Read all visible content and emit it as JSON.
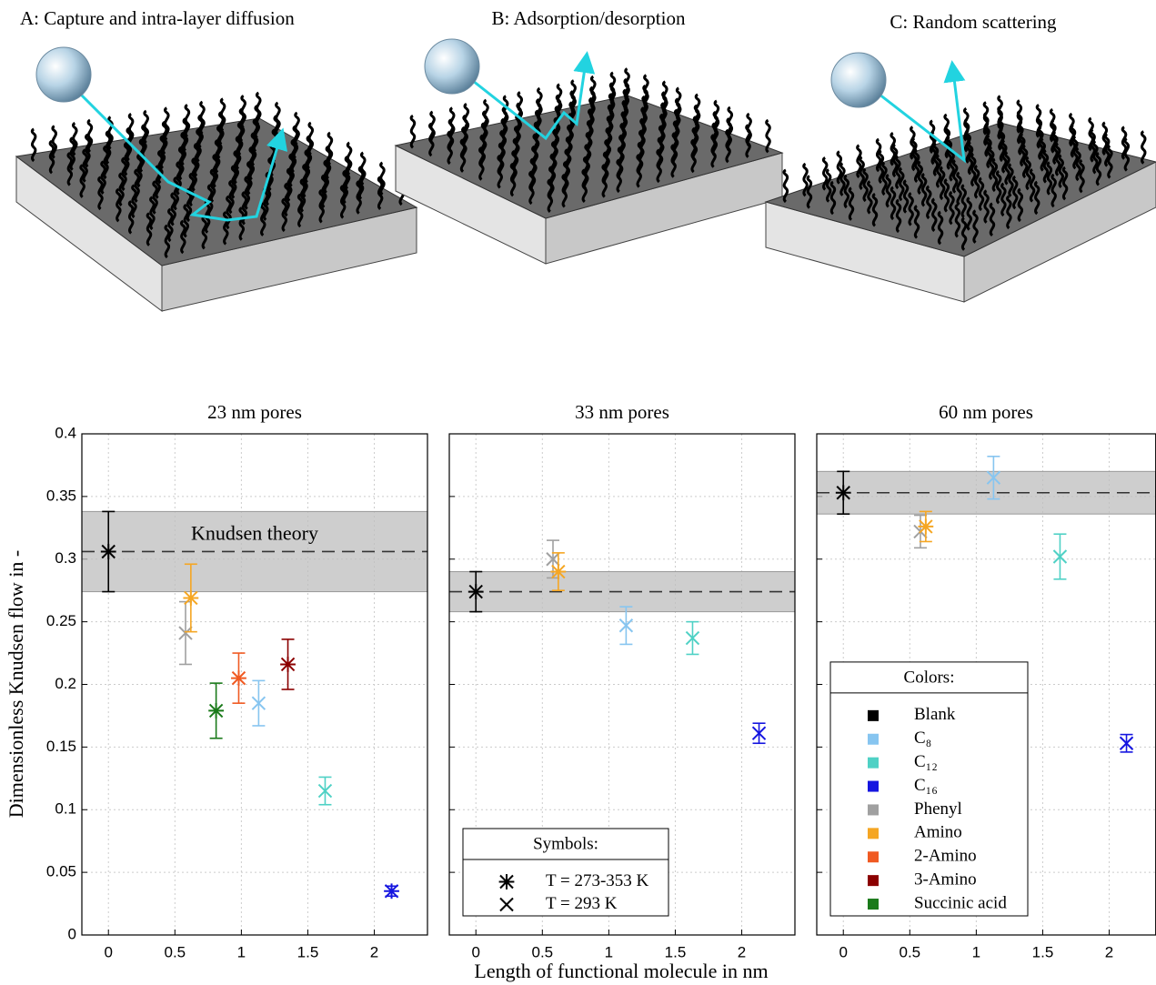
{
  "illustrations": [
    {
      "title": "A: Capture and intra-layer diffusion"
    },
    {
      "title": "B: Adsorption/desorption"
    },
    {
      "title": "C: Random scattering"
    }
  ],
  "xlabel": "Length of functional molecule in nm",
  "ylabel": "Dimensionless Knudsen flow in -",
  "chart_data": [
    {
      "type": "scatter",
      "title": "23 nm pores",
      "xlim": [
        -0.2,
        2.4
      ],
      "ylim": [
        0,
        0.4
      ],
      "xticks": [
        0,
        0.5,
        1,
        1.5,
        2
      ],
      "yticks": [
        0,
        0.05,
        0.1,
        0.15,
        0.2,
        0.25,
        0.3,
        0.35,
        0.4
      ],
      "ytick_labels": true,
      "grid": true,
      "theory": {
        "center": 0.306,
        "lower": 0.274,
        "upper": 0.338,
        "label": "Knudsen theory"
      },
      "series": [
        {
          "color": "#000000",
          "marker": "star",
          "x": [
            0
          ],
          "values": [
            0.306
          ],
          "errors": [
            0.032
          ]
        },
        {
          "color": "#a0a0a0",
          "marker": "x",
          "x": [
            0.58
          ],
          "values": [
            0.241
          ],
          "errors": [
            0.025
          ]
        },
        {
          "color": "#f5a623",
          "marker": "star",
          "x": [
            0.62
          ],
          "values": [
            0.269
          ],
          "errors": [
            0.027
          ]
        },
        {
          "color": "#1a7a1a",
          "marker": "star",
          "x": [
            0.81
          ],
          "values": [
            0.179
          ],
          "errors": [
            0.022
          ]
        },
        {
          "color": "#f05a22",
          "marker": "star",
          "x": [
            0.98
          ],
          "values": [
            0.205
          ],
          "errors": [
            0.02
          ]
        },
        {
          "color": "#87c5f0",
          "marker": "x",
          "x": [
            1.13
          ],
          "values": [
            0.185
          ],
          "errors": [
            0.018
          ]
        },
        {
          "color": "#8b0000",
          "marker": "star",
          "x": [
            1.35
          ],
          "values": [
            0.216
          ],
          "errors": [
            0.02
          ]
        },
        {
          "color": "#4fd1c5",
          "marker": "x",
          "x": [
            1.63
          ],
          "values": [
            0.115
          ],
          "errors": [
            0.011
          ]
        },
        {
          "color": "#1515e0",
          "marker": "star",
          "x": [
            2.13
          ],
          "values": [
            0.035
          ],
          "errors": [
            0.004
          ]
        }
      ]
    },
    {
      "type": "scatter",
      "title": "33 nm pores",
      "xlim": [
        -0.2,
        2.4
      ],
      "ylim": [
        0,
        0.4
      ],
      "xticks": [
        0,
        0.5,
        1,
        1.5,
        2
      ],
      "yticks": [
        0,
        0.05,
        0.1,
        0.15,
        0.2,
        0.25,
        0.3,
        0.35,
        0.4
      ],
      "ytick_labels": false,
      "grid": true,
      "theory": {
        "center": 0.274,
        "lower": 0.258,
        "upper": 0.29
      },
      "series": [
        {
          "color": "#000000",
          "marker": "star",
          "x": [
            0
          ],
          "values": [
            0.274
          ],
          "errors": [
            0.016
          ]
        },
        {
          "color": "#a0a0a0",
          "marker": "x",
          "x": [
            0.58
          ],
          "values": [
            0.3
          ],
          "errors": [
            0.015
          ]
        },
        {
          "color": "#f5a623",
          "marker": "star",
          "x": [
            0.62
          ],
          "values": [
            0.29
          ],
          "errors": [
            0.015
          ]
        },
        {
          "color": "#87c5f0",
          "marker": "x",
          "x": [
            1.13
          ],
          "values": [
            0.247
          ],
          "errors": [
            0.015
          ]
        },
        {
          "color": "#4fd1c5",
          "marker": "x",
          "x": [
            1.63
          ],
          "values": [
            0.237
          ],
          "errors": [
            0.013
          ]
        },
        {
          "color": "#1515e0",
          "marker": "x",
          "x": [
            2.13
          ],
          "values": [
            0.161
          ],
          "errors": [
            0.008
          ]
        }
      ],
      "legend": {
        "title": "Symbols:",
        "position": "lower left",
        "entries": [
          {
            "marker": "star",
            "label": "T = 273-353 K"
          },
          {
            "marker": "x",
            "label": "T = 293 K"
          }
        ]
      }
    },
    {
      "type": "scatter",
      "title": "60 nm pores",
      "xlim": [
        -0.2,
        2.35
      ],
      "ylim": [
        0,
        0.4
      ],
      "xticks": [
        0,
        0.5,
        1,
        1.5,
        2
      ],
      "yticks": [
        0,
        0.05,
        0.1,
        0.15,
        0.2,
        0.25,
        0.3,
        0.35,
        0.4
      ],
      "ytick_labels": false,
      "grid": true,
      "theory": {
        "center": 0.353,
        "lower": 0.336,
        "upper": 0.37
      },
      "series": [
        {
          "color": "#000000",
          "marker": "star",
          "x": [
            0
          ],
          "values": [
            0.353
          ],
          "errors": [
            0.017
          ]
        },
        {
          "color": "#a0a0a0",
          "marker": "x",
          "x": [
            0.58
          ],
          "values": [
            0.322
          ],
          "errors": [
            0.013
          ]
        },
        {
          "color": "#f5a623",
          "marker": "star",
          "x": [
            0.62
          ],
          "values": [
            0.326
          ],
          "errors": [
            0.012
          ]
        },
        {
          "color": "#87c5f0",
          "marker": "x",
          "x": [
            1.13
          ],
          "values": [
            0.365
          ],
          "errors": [
            0.017
          ]
        },
        {
          "color": "#4fd1c5",
          "marker": "x",
          "x": [
            1.63
          ],
          "values": [
            0.302
          ],
          "errors": [
            0.018
          ]
        },
        {
          "color": "#1515e0",
          "marker": "x",
          "x": [
            2.13
          ],
          "values": [
            0.153
          ],
          "errors": [
            0.007
          ]
        }
      ],
      "legend": {
        "title": "Colors:",
        "position": "lower left",
        "entries": [
          {
            "name": "Blank",
            "color": "#000000"
          },
          {
            "name": "C₈",
            "color": "#87c5f0"
          },
          {
            "name": "C₁₂",
            "color": "#4fd1c5"
          },
          {
            "name": "C₁₆",
            "color": "#1515e0"
          },
          {
            "name": "Phenyl",
            "color": "#a0a0a0"
          },
          {
            "name": "Amino",
            "color": "#f5a623"
          },
          {
            "name": "2-Amino",
            "color": "#f05a22"
          },
          {
            "name": "3-Amino",
            "color": "#8b0000"
          },
          {
            "name": "Succinic acid",
            "color": "#1a7a1a"
          }
        ]
      }
    }
  ]
}
